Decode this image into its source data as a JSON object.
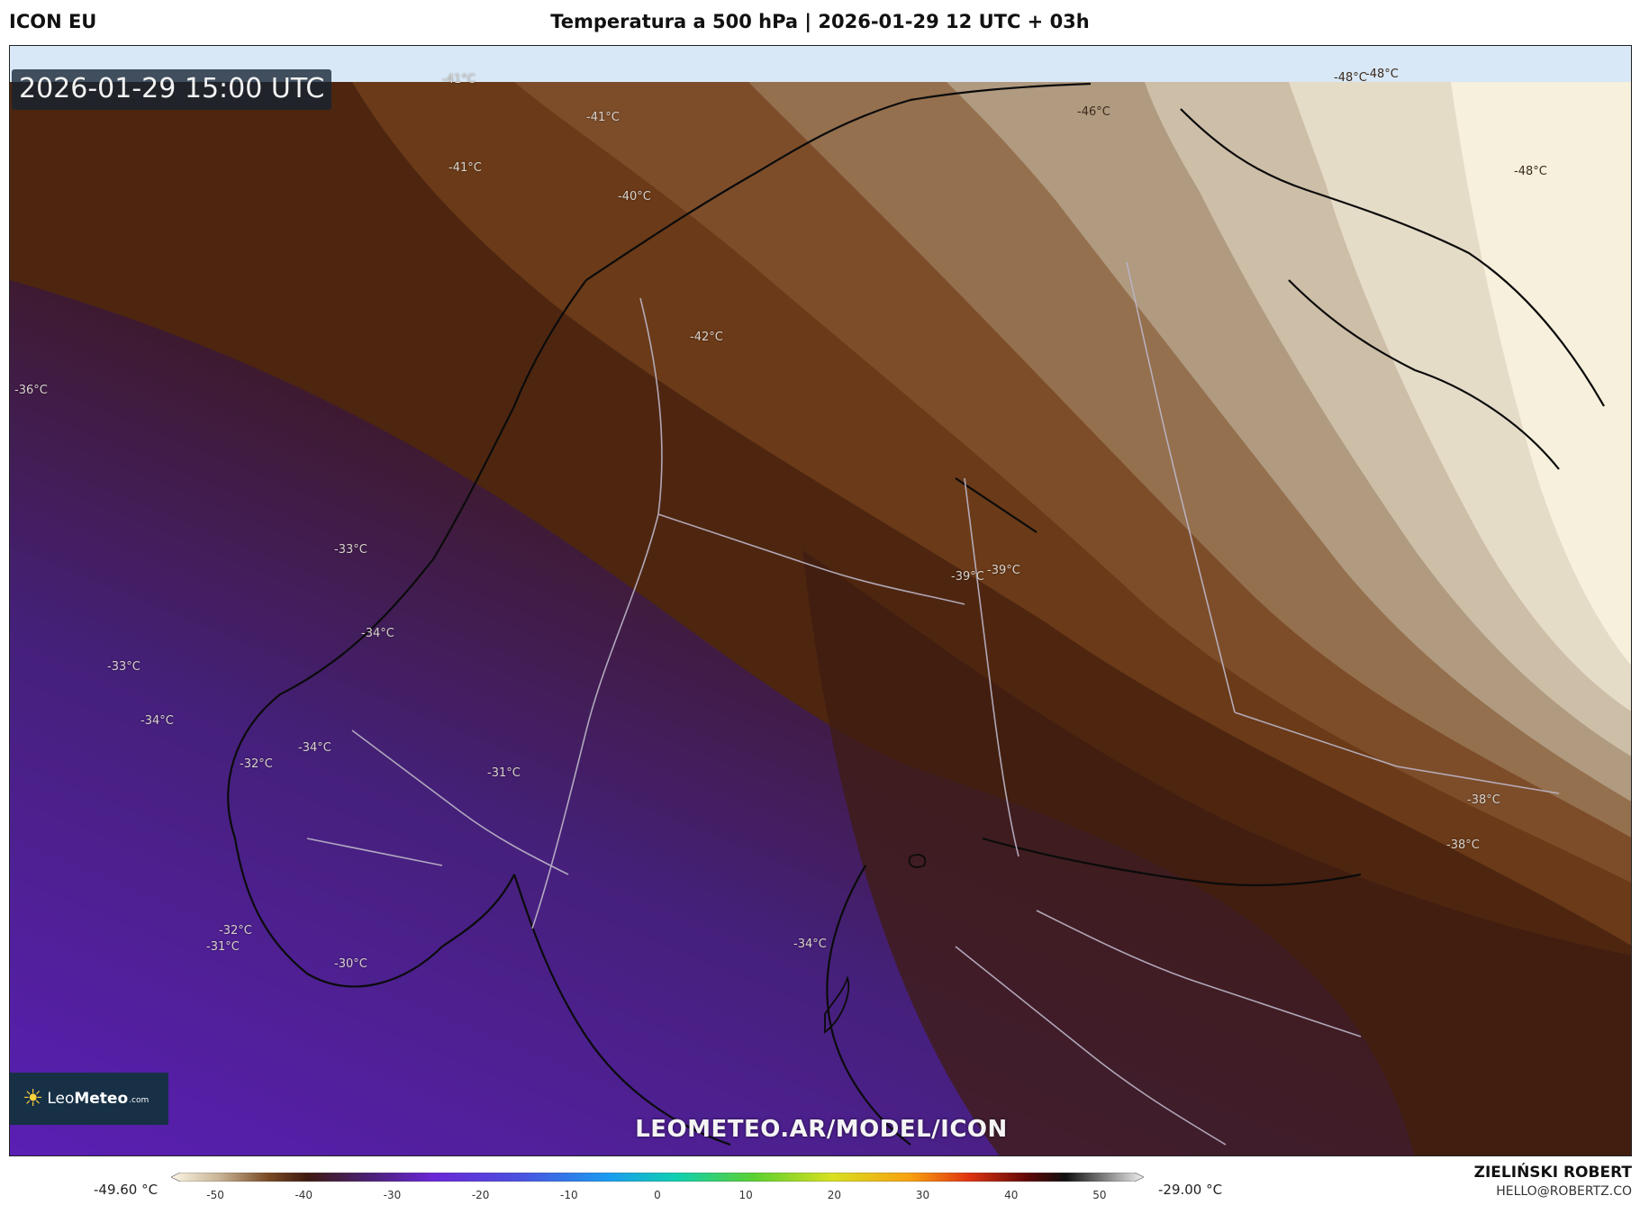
{
  "header": {
    "model": "ICON EU",
    "title": "Temperatura a 500 hPa | 2026-01-29 12 UTC + 03h"
  },
  "map": {
    "valid_time": "2026-01-29 15:00 UTC",
    "watermark": "LEOMETEO.AR/MODEL/ICON",
    "logo": {
      "sun": "☀",
      "prefix": "Leo",
      "brand": "Meteo",
      "suffix": ".com"
    },
    "labels": [
      {
        "text": "-41°C",
        "tone": "light"
      },
      {
        "text": "-41°C",
        "tone": "light"
      },
      {
        "text": "-41°C",
        "tone": "light"
      },
      {
        "text": "-40°C",
        "tone": "light"
      },
      {
        "text": "-42°C",
        "tone": "light"
      },
      {
        "text": "-46°C",
        "tone": "dark"
      },
      {
        "text": "-48°C",
        "tone": "dark"
      },
      {
        "text": "-48°C",
        "tone": "dark"
      },
      {
        "text": "-48°C",
        "tone": "dark"
      },
      {
        "text": "-36°C",
        "tone": "light"
      },
      {
        "text": "-33°C",
        "tone": "light"
      },
      {
        "text": "-34°C",
        "tone": "light"
      },
      {
        "text": "-33°C",
        "tone": "light"
      },
      {
        "text": "-34°C",
        "tone": "light"
      },
      {
        "text": "-34°C",
        "tone": "light"
      },
      {
        "text": "-32°C",
        "tone": "light"
      },
      {
        "text": "-31°C",
        "tone": "light"
      },
      {
        "text": "-39°C",
        "tone": "light"
      },
      {
        "text": "-39°C",
        "tone": "light"
      },
      {
        "text": "-38°C",
        "tone": "light"
      },
      {
        "text": "-38°C",
        "tone": "light"
      },
      {
        "text": "-32°C",
        "tone": "light"
      },
      {
        "text": "-31°C",
        "tone": "light"
      },
      {
        "text": "-30°C",
        "tone": "light"
      },
      {
        "text": "-34°C",
        "tone": "light"
      }
    ]
  },
  "legend": {
    "min_label": "-49.60 °C",
    "max_label": "-29.00 °C",
    "ticks": [
      "-50",
      "-40",
      "-30",
      "-20",
      "-10",
      "0",
      "10",
      "20",
      "30",
      "40",
      "50"
    ],
    "range": [
      -55,
      55
    ]
  },
  "footer": {
    "author": "ZIELIŃSKI ROBERT",
    "contact": "HELLO@ROBERTZ.CO"
  }
}
